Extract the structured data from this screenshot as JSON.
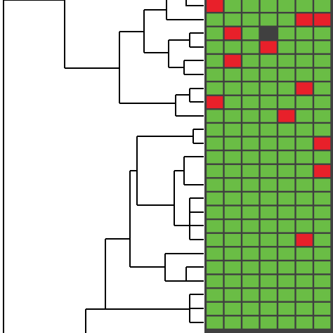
{
  "chart_data": {
    "type": "heatmap",
    "palette": [
      "#6abd45",
      "#e8202a",
      "#404040"
    ],
    "rows": [
      [
        1,
        0,
        0,
        0,
        0,
        0,
        0
      ],
      [
        0,
        0,
        0,
        0,
        0,
        1,
        1
      ],
      [
        0,
        1,
        0,
        2,
        0,
        0,
        0
      ],
      [
        0,
        0,
        0,
        1,
        0,
        0,
        0
      ],
      [
        0,
        1,
        0,
        0,
        0,
        0,
        0
      ],
      [
        0,
        0,
        0,
        0,
        0,
        0,
        0
      ],
      [
        0,
        0,
        0,
        0,
        0,
        1,
        0
      ],
      [
        1,
        0,
        0,
        0,
        0,
        0,
        0
      ],
      [
        0,
        0,
        0,
        0,
        1,
        0,
        0
      ],
      [
        0,
        0,
        0,
        0,
        0,
        0,
        0
      ],
      [
        0,
        0,
        0,
        0,
        0,
        0,
        1
      ],
      [
        0,
        0,
        0,
        0,
        0,
        0,
        0
      ],
      [
        0,
        0,
        0,
        0,
        0,
        0,
        1
      ],
      [
        0,
        0,
        0,
        0,
        0,
        0,
        0
      ],
      [
        0,
        0,
        0,
        0,
        0,
        0,
        0
      ],
      [
        0,
        0,
        0,
        0,
        0,
        0,
        0
      ],
      [
        0,
        0,
        0,
        0,
        0,
        0,
        0
      ],
      [
        0,
        0,
        0,
        0,
        0,
        1,
        0
      ],
      [
        0,
        0,
        0,
        0,
        0,
        0,
        0
      ],
      [
        0,
        0,
        0,
        0,
        0,
        0,
        0
      ],
      [
        0,
        0,
        0,
        0,
        0,
        0,
        0
      ],
      [
        0,
        0,
        0,
        0,
        0,
        0,
        0
      ],
      [
        0,
        0,
        0,
        0,
        0,
        0,
        0
      ],
      [
        0,
        0,
        0,
        0,
        0,
        0,
        0
      ]
    ]
  }
}
